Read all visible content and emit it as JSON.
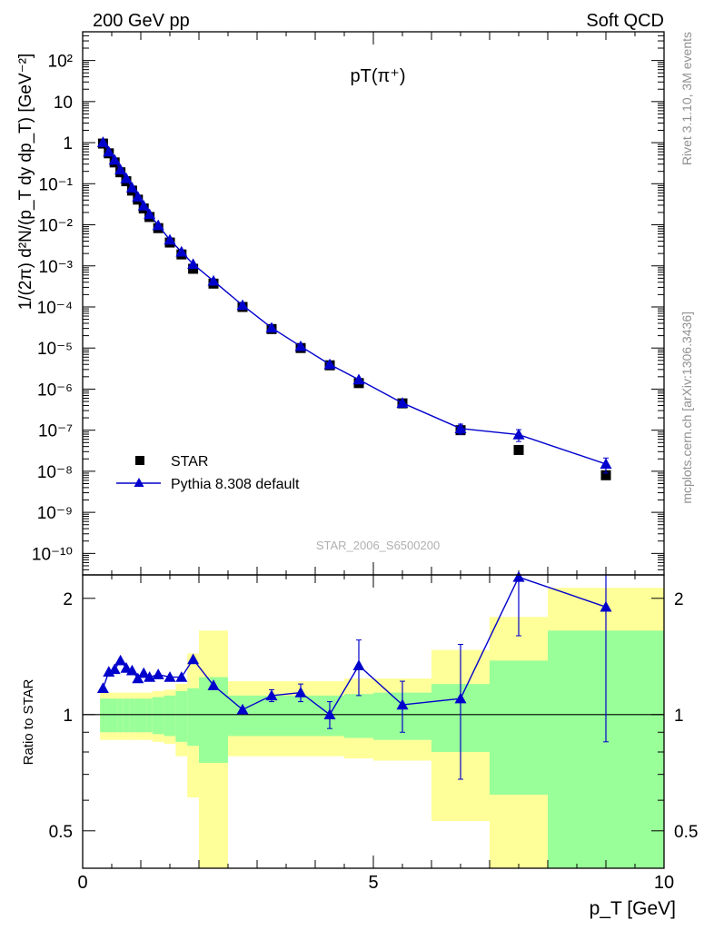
{
  "header": {
    "left_label": "200 GeV pp",
    "right_label": "Soft QCD"
  },
  "side_labels": {
    "rivet": "Rivet 3.1.10,  3M events",
    "source": "mcplots.cern.ch [arXiv:1306.3436]"
  },
  "colors": {
    "data_marker": "#000000",
    "mc_line": "#0000cc",
    "band_outer": "#ffff99",
    "band_inner": "#99ff99"
  },
  "chart_data": [
    {
      "type": "scatter",
      "title": "pT(π⁺)",
      "analysis_label": "STAR_2006_S6500200",
      "ylabel": "1/(2π) d²N/(p_T dy dp_T) [GeV⁻²]",
      "yscale": "log",
      "xlim": [
        0,
        10
      ],
      "ylim": [
        3e-11,
        500
      ],
      "y_tick_labels": [
        "10⁻¹⁰",
        "10⁻⁹",
        "10⁻⁸",
        "10⁻⁷",
        "10⁻⁶",
        "10⁻⁵",
        "10⁻⁴",
        "10⁻³",
        "10⁻²",
        "10⁻¹",
        "1",
        "10",
        "10²"
      ],
      "legend": {
        "placement": "bottom-left",
        "entries": [
          "STAR",
          "Pythia 8.308 default"
        ]
      },
      "series": [
        {
          "name": "STAR",
          "marker": "square",
          "x": [
            0.35,
            0.45,
            0.55,
            0.65,
            0.75,
            0.85,
            0.95,
            1.05,
            1.15,
            1.3,
            1.5,
            1.7,
            1.9,
            2.25,
            2.75,
            3.25,
            3.75,
            4.25,
            4.75,
            5.5,
            6.5,
            7.5,
            9.0
          ],
          "y": [
            0.95,
            0.55,
            0.33,
            0.19,
            0.115,
            0.068,
            0.041,
            0.025,
            0.0155,
            0.0083,
            0.0037,
            0.0019,
            0.00085,
            0.00037,
            0.0001,
            2.9e-05,
            1e-05,
            3.8e-06,
            1.4e-06,
            4.5e-07,
            1e-07,
            3.3e-08,
            8e-09
          ]
        },
        {
          "name": "Pythia 8.308 default",
          "marker": "triangle",
          "x": [
            0.35,
            0.45,
            0.55,
            0.65,
            0.75,
            0.85,
            0.95,
            1.05,
            1.15,
            1.3,
            1.5,
            1.7,
            1.9,
            2.25,
            2.75,
            3.25,
            3.75,
            4.25,
            4.75,
            5.5,
            6.5,
            7.5,
            9.0
          ],
          "y": [
            1.02,
            0.6,
            0.38,
            0.22,
            0.135,
            0.08,
            0.048,
            0.029,
            0.018,
            0.0097,
            0.0043,
            0.0022,
            0.0011,
            0.00043,
            0.00011,
            3.1e-05,
            1.1e-05,
            4e-06,
            1.7e-06,
            4.6e-07,
            1.1e-07,
            7.8e-08,
            1.5e-08
          ],
          "yerr": [
            0,
            0,
            0,
            0,
            0,
            0,
            0,
            0,
            0,
            0,
            0,
            0,
            0,
            0,
            0,
            0,
            0,
            0,
            0,
            0,
            3e-08,
            2.5e-08,
            6e-09
          ]
        }
      ]
    },
    {
      "type": "scatter",
      "ylabel": "Ratio to STAR",
      "xlabel": "p_T [GeV]",
      "yscale": "log",
      "xlim": [
        0,
        10
      ],
      "ylim": [
        0.4,
        2.3
      ],
      "x_tick_labels": [
        "0",
        "5",
        "10"
      ],
      "y_tick_labels": [
        "0.5",
        "1",
        "2"
      ],
      "bands": [
        {
          "x0": 0.3,
          "x1": 0.4,
          "in_lo": 0.9,
          "in_hi": 1.1,
          "out_lo": 0.86,
          "out_hi": 1.14
        },
        {
          "x0": 0.4,
          "x1": 0.5,
          "in_lo": 0.9,
          "in_hi": 1.1,
          "out_lo": 0.86,
          "out_hi": 1.14
        },
        {
          "x0": 0.5,
          "x1": 0.6,
          "in_lo": 0.9,
          "in_hi": 1.1,
          "out_lo": 0.86,
          "out_hi": 1.14
        },
        {
          "x0": 0.6,
          "x1": 0.7,
          "in_lo": 0.9,
          "in_hi": 1.1,
          "out_lo": 0.86,
          "out_hi": 1.14
        },
        {
          "x0": 0.7,
          "x1": 0.8,
          "in_lo": 0.9,
          "in_hi": 1.1,
          "out_lo": 0.86,
          "out_hi": 1.14
        },
        {
          "x0": 0.8,
          "x1": 0.9,
          "in_lo": 0.9,
          "in_hi": 1.1,
          "out_lo": 0.86,
          "out_hi": 1.14
        },
        {
          "x0": 0.9,
          "x1": 1.0,
          "in_lo": 0.9,
          "in_hi": 1.1,
          "out_lo": 0.86,
          "out_hi": 1.14
        },
        {
          "x0": 1.0,
          "x1": 1.1,
          "in_lo": 0.9,
          "in_hi": 1.1,
          "out_lo": 0.86,
          "out_hi": 1.14
        },
        {
          "x0": 1.1,
          "x1": 1.2,
          "in_lo": 0.9,
          "in_hi": 1.1,
          "out_lo": 0.86,
          "out_hi": 1.14
        },
        {
          "x0": 1.2,
          "x1": 1.4,
          "in_lo": 0.89,
          "in_hi": 1.11,
          "out_lo": 0.85,
          "out_hi": 1.15
        },
        {
          "x0": 1.4,
          "x1": 1.6,
          "in_lo": 0.88,
          "in_hi": 1.12,
          "out_lo": 0.84,
          "out_hi": 1.16
        },
        {
          "x0": 1.6,
          "x1": 1.8,
          "in_lo": 0.85,
          "in_hi": 1.15,
          "out_lo": 0.78,
          "out_hi": 1.2
        },
        {
          "x0": 1.8,
          "x1": 2.0,
          "in_lo": 0.83,
          "in_hi": 1.17,
          "out_lo": 0.61,
          "out_hi": 1.44
        },
        {
          "x0": 2.0,
          "x1": 2.5,
          "in_lo": 0.75,
          "in_hi": 1.25,
          "out_lo": 0.365,
          "out_hi": 1.65
        },
        {
          "x0": 2.5,
          "x1": 3.0,
          "in_lo": 0.88,
          "in_hi": 1.12,
          "out_lo": 0.78,
          "out_hi": 1.22
        },
        {
          "x0": 3.0,
          "x1": 3.5,
          "in_lo": 0.88,
          "in_hi": 1.12,
          "out_lo": 0.78,
          "out_hi": 1.22
        },
        {
          "x0": 3.5,
          "x1": 4.0,
          "in_lo": 0.88,
          "in_hi": 1.12,
          "out_lo": 0.78,
          "out_hi": 1.22
        },
        {
          "x0": 4.0,
          "x1": 4.5,
          "in_lo": 0.88,
          "in_hi": 1.12,
          "out_lo": 0.78,
          "out_hi": 1.22
        },
        {
          "x0": 4.5,
          "x1": 5.0,
          "in_lo": 0.87,
          "in_hi": 1.13,
          "out_lo": 0.77,
          "out_hi": 1.24
        },
        {
          "x0": 5.0,
          "x1": 6.0,
          "in_lo": 0.86,
          "in_hi": 1.14,
          "out_lo": 0.76,
          "out_hi": 1.24
        },
        {
          "x0": 6.0,
          "x1": 7.0,
          "in_lo": 0.8,
          "in_hi": 1.2,
          "out_lo": 0.53,
          "out_hi": 1.47
        },
        {
          "x0": 7.0,
          "x1": 8.0,
          "in_lo": 0.62,
          "in_hi": 1.38,
          "out_lo": 0.35,
          "out_hi": 1.79
        },
        {
          "x0": 8.0,
          "x1": 10.0,
          "in_lo": 0.35,
          "in_hi": 1.65,
          "out_lo": 0.35,
          "out_hi": 2.13
        }
      ],
      "series": [
        {
          "name": "Pythia 8.308 default",
          "marker": "triangle",
          "x": [
            0.35,
            0.45,
            0.55,
            0.65,
            0.75,
            0.85,
            0.95,
            1.05,
            1.15,
            1.3,
            1.5,
            1.7,
            1.9,
            2.25,
            2.75,
            3.25,
            3.75,
            4.25,
            4.75,
            5.5,
            6.5,
            7.5,
            9.0
          ],
          "y": [
            1.17,
            1.29,
            1.31,
            1.38,
            1.32,
            1.3,
            1.24,
            1.28,
            1.25,
            1.27,
            1.25,
            1.25,
            1.39,
            1.19,
            1.03,
            1.12,
            1.14,
            1.0,
            1.34,
            1.06,
            1.1,
            2.27,
            1.9
          ],
          "yerr": [
            0,
            0,
            0,
            0,
            0,
            0,
            0,
            0,
            0,
            0,
            0,
            0,
            0,
            0,
            0,
            0.04,
            0.06,
            0.08,
            0.22,
            0.16,
            0.42,
            0.67,
            1.05
          ]
        }
      ]
    }
  ]
}
